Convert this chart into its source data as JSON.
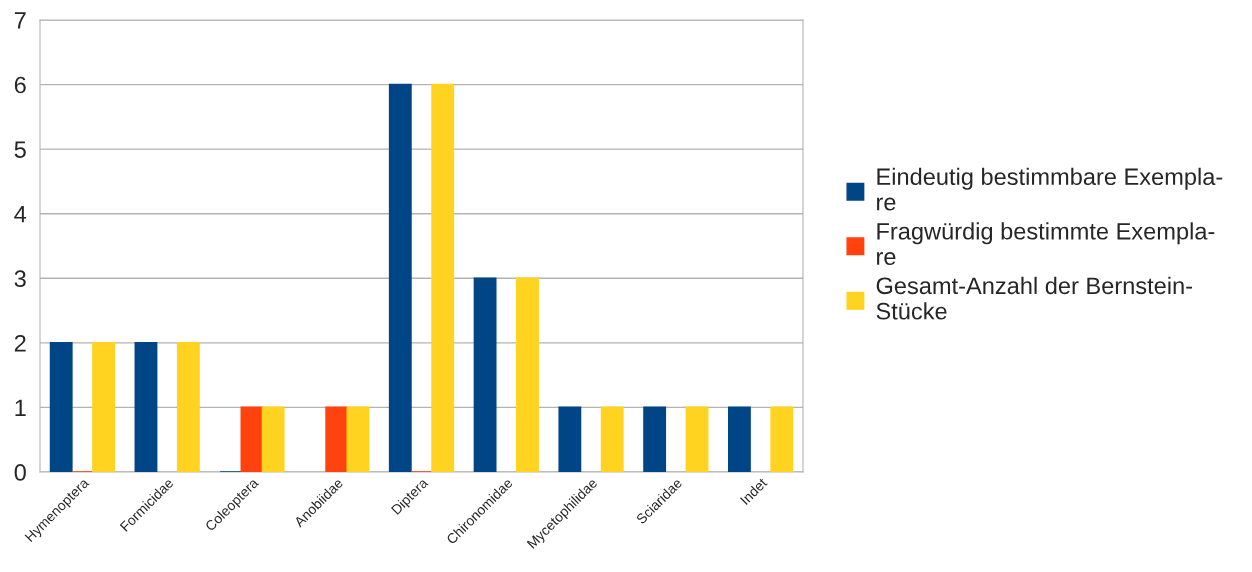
{
  "chart_data": {
    "type": "bar",
    "categories": [
      "Hymenoptera",
      "Formicidae",
      "Coleoptera",
      "Anobiidae",
      "Diptera",
      "Chironomidae",
      "Mycetophilidae",
      "Sciaridae",
      "Indet"
    ],
    "series": [
      {
        "name": "Eindeutig bestimmbare Exempla-\nre",
        "color": "#004586",
        "values": [
          2,
          2,
          0,
          null,
          6,
          3,
          1,
          1,
          1
        ]
      },
      {
        "name": "Fragwürdig bestimmte Exempla-\nre",
        "color": "#ff420e",
        "values": [
          0,
          null,
          1,
          1,
          0,
          null,
          null,
          null,
          null
        ]
      },
      {
        "name": "Gesamt-Anzahl der Bernstein-\nStücke",
        "color": "#ffd320",
        "values": [
          2,
          2,
          1,
          1,
          6,
          3,
          1,
          1,
          1
        ]
      }
    ],
    "ylim": [
      0,
      7
    ],
    "yticks": [
      0,
      1,
      2,
      3,
      4,
      5,
      6,
      7
    ],
    "grid": "y",
    "legend": "right"
  }
}
